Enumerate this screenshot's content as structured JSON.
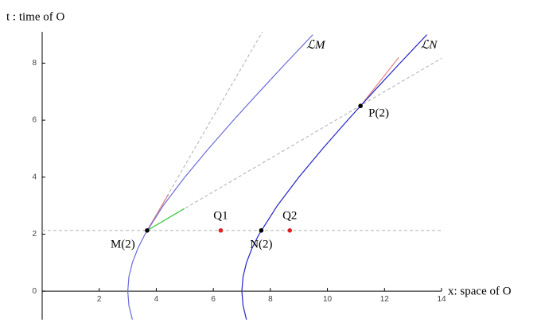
{
  "chart_data": {
    "type": "line",
    "ylabel": "t : time of O",
    "xlabel": "x: space of O",
    "xlim": [
      0,
      14
    ],
    "ylim": [
      -1,
      9.1
    ],
    "xticks": [
      2,
      4,
      6,
      8,
      10,
      12,
      14
    ],
    "yticks": [
      0,
      2,
      4,
      6,
      8
    ],
    "series": [
      {
        "name": "ℒM",
        "color": "#6b6bd9",
        "x": [
          3.162,
          3.041,
          3,
          3.041,
          3.162,
          3.354,
          3.606,
          4.243,
          5,
          5.831,
          6.708,
          7.616,
          8.544,
          9.487
        ],
        "values": [
          -1,
          -0.5,
          0,
          0.5,
          1,
          1.5,
          2,
          3,
          4,
          5,
          6,
          7,
          8,
          9
        ]
      },
      {
        "name": "ℒN",
        "color": "#2323c8",
        "x": [
          7.162,
          7.041,
          7,
          7.041,
          7.162,
          7.354,
          7.606,
          8.243,
          9,
          9.831,
          10.708,
          11.616,
          12.544,
          13.487
        ],
        "values": [
          -1,
          -0.5,
          0,
          0.5,
          1,
          1.5,
          2,
          3,
          4,
          5,
          6,
          7,
          8,
          9
        ]
      }
    ],
    "lines": [
      {
        "color": "#bbbbbb",
        "dashed": true,
        "x": [
          0,
          14
        ],
        "values": [
          2.13,
          2.13
        ]
      },
      {
        "color": "#bbbbbb",
        "dashed": true,
        "x": [
          3.68,
          14
        ],
        "values": [
          2.13,
          8.17
        ]
      },
      {
        "color": "#bbbbbb",
        "dashed": true,
        "x": [
          3.68,
          7.72
        ],
        "values": [
          2.13,
          9.1
        ]
      },
      {
        "color": "#44cc44",
        "dashed": false,
        "x": [
          3.68,
          4.99
        ],
        "values": [
          2.13,
          2.9
        ]
      },
      {
        "color": "#e88080",
        "dashed": false,
        "x": [
          3.68,
          4.43
        ],
        "values": [
          2.13,
          3.4
        ]
      },
      {
        "color": "#e88080",
        "dashed": false,
        "x": [
          11.16,
          12.5
        ],
        "values": [
          6.5,
          8.2
        ]
      }
    ],
    "points": [
      {
        "label": "M(2)",
        "color": "#000000",
        "x": 3.68,
        "value": 2.13
      },
      {
        "label": "N(2)",
        "color": "#000000",
        "x": 7.68,
        "value": 2.13
      },
      {
        "label": "P(2)",
        "color": "#000000",
        "x": 11.16,
        "value": 6.5
      },
      {
        "label": "Q1",
        "color": "#dd2222",
        "x": 6.26,
        "value": 2.13
      },
      {
        "label": "Q2",
        "color": "#dd2222",
        "x": 8.68,
        "value": 2.13
      }
    ]
  }
}
